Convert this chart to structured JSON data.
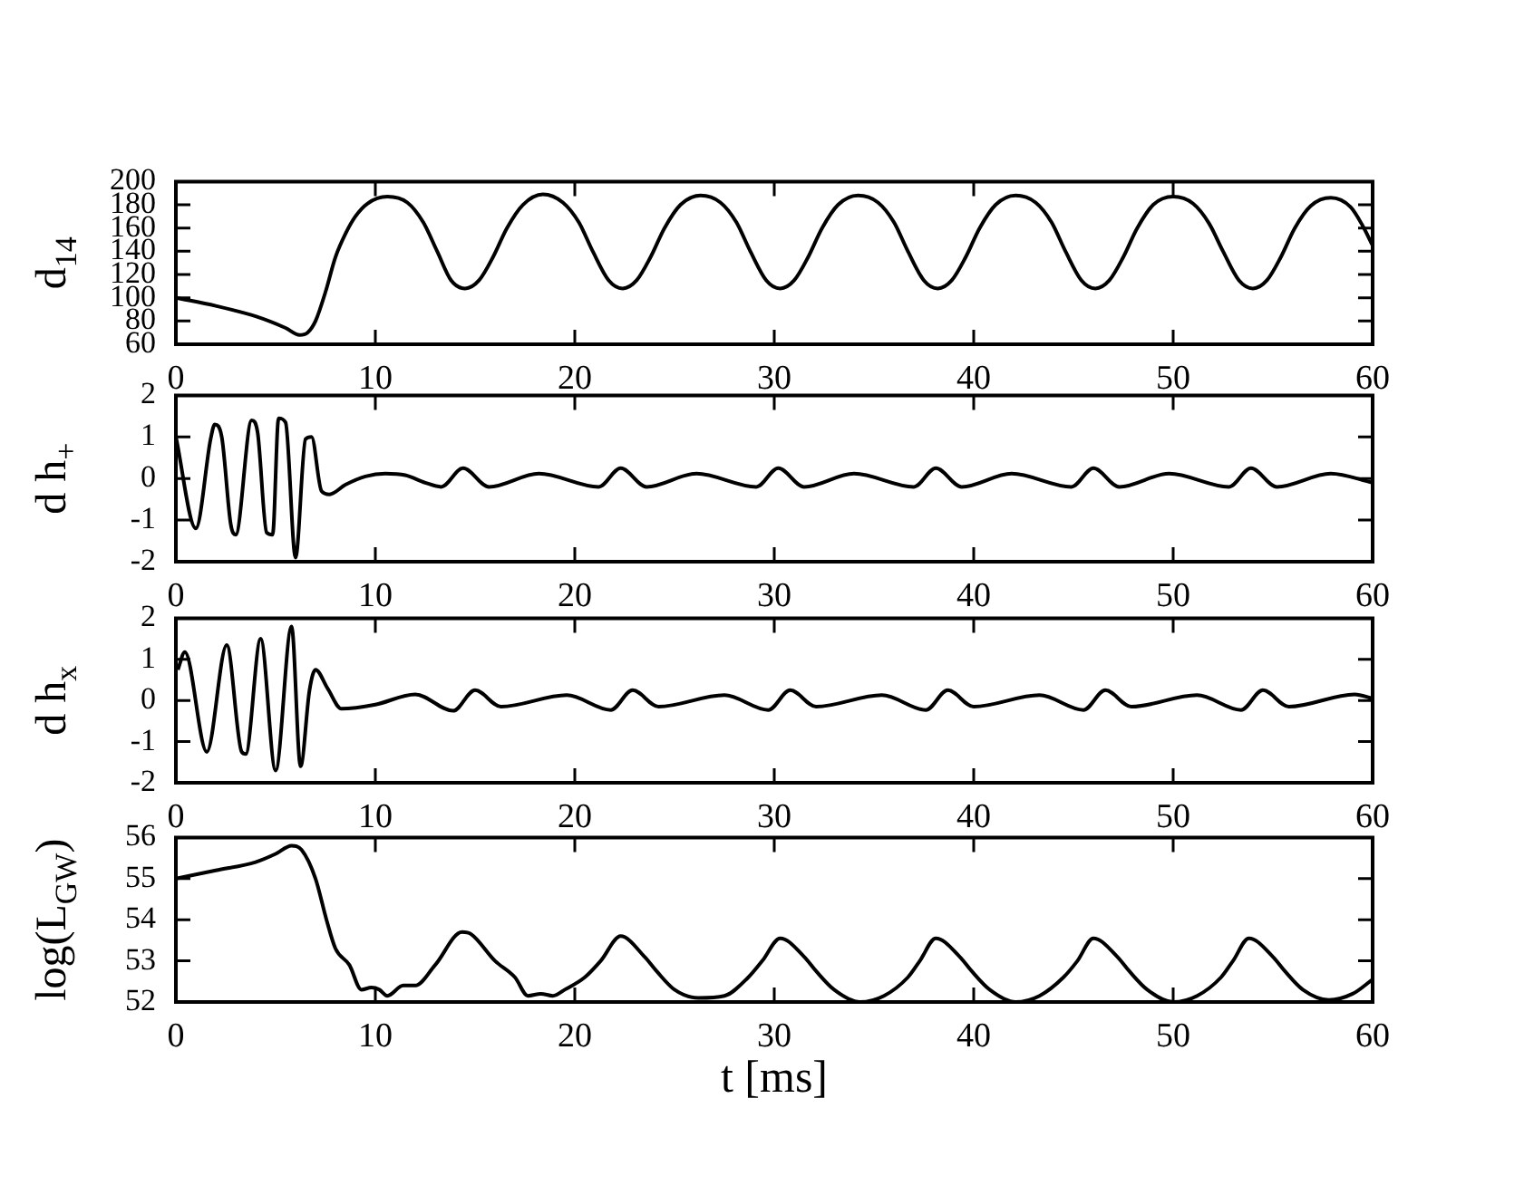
{
  "chart_data": [
    {
      "type": "line",
      "ylabel": "d$_{14}$",
      "color": "#000000",
      "marker": "none",
      "line_style": "solid",
      "x": [
        0,
        2,
        4,
        5.5,
        6.2,
        6.6,
        7.0,
        7.5,
        8.0,
        8.5,
        9.0,
        9.6,
        10.6,
        11.6,
        12.4,
        13.1,
        13.8,
        14.5,
        15.2,
        15.9,
        16.6,
        17.4,
        18.4,
        19.4,
        20.2,
        20.9,
        21.7,
        22.4,
        23.1,
        23.8,
        24.5,
        25.3,
        26.3,
        27.3,
        28.1,
        28.8,
        29.6,
        30.3,
        31.0,
        31.7,
        32.4,
        33.2,
        34.2,
        35.2,
        36.0,
        36.7,
        37.5,
        38.2,
        38.9,
        39.6,
        40.3,
        41.1,
        42.1,
        43.1,
        43.9,
        44.6,
        45.4,
        46.1,
        46.8,
        47.5,
        48.2,
        49.0,
        50.0,
        51.0,
        51.8,
        52.5,
        53.3,
        54.0,
        54.7,
        55.4,
        56.1,
        56.9,
        57.9,
        58.9,
        59.5,
        60
      ],
      "values": [
        100,
        93,
        84,
        74,
        68,
        70,
        80,
        105,
        135,
        155,
        170,
        181,
        187,
        182,
        165,
        140,
        115,
        108,
        115,
        135,
        160,
        180,
        189,
        182,
        165,
        140,
        115,
        108,
        115,
        135,
        160,
        180,
        188,
        182,
        165,
        140,
        115,
        108,
        115,
        135,
        160,
        180,
        188,
        182,
        165,
        140,
        115,
        108,
        115,
        135,
        160,
        180,
        188,
        182,
        165,
        140,
        115,
        108,
        115,
        135,
        160,
        180,
        187,
        181,
        164,
        140,
        115,
        108,
        115,
        135,
        160,
        179,
        186,
        178,
        162,
        145
      ],
      "xlim": [
        0,
        60
      ],
      "xticks": [
        0,
        10,
        20,
        30,
        40,
        50,
        60
      ],
      "ylim": [
        60,
        200
      ],
      "yticks": [
        60,
        80,
        100,
        120,
        140,
        160,
        180,
        200
      ]
    },
    {
      "type": "line",
      "ylabel": "d h$_{+}$",
      "color": "#000000",
      "marker": "none",
      "line_style": "solid",
      "x": [
        0,
        1.0,
        1.75,
        1.95,
        2.3,
        2.75,
        3.0,
        3.8,
        4.1,
        4.55,
        4.85,
        5.15,
        5.5,
        6.0,
        6.5,
        6.8,
        7.3,
        7.7,
        8.5,
        9.5,
        10.5,
        11.5,
        12.5,
        13.3,
        14.4,
        15.7,
        18.2,
        21.2,
        22.3,
        23.6,
        26.1,
        29.1,
        30.2,
        31.5,
        34.0,
        37.0,
        38.1,
        39.4,
        41.9,
        44.9,
        46.0,
        47.3,
        49.8,
        52.8,
        53.9,
        55.2,
        57.9,
        60
      ],
      "values": [
        1.0,
        -1.2,
        0.97,
        1.3,
        1.0,
        -1.1,
        -1.35,
        1.4,
        1.1,
        -1.3,
        -1.35,
        1.45,
        1.35,
        -1.9,
        0.95,
        1.0,
        -0.3,
        -0.38,
        -0.15,
        0.05,
        0.12,
        0.08,
        -0.1,
        -0.2,
        0.25,
        -0.2,
        0.12,
        -0.2,
        0.25,
        -0.2,
        0.12,
        -0.2,
        0.25,
        -0.2,
        0.12,
        -0.2,
        0.25,
        -0.2,
        0.12,
        -0.2,
        0.25,
        -0.2,
        0.12,
        -0.2,
        0.25,
        -0.2,
        0.12,
        -0.1
      ],
      "xlim": [
        0,
        60
      ],
      "xticks": [
        0,
        10,
        20,
        30,
        40,
        50,
        60
      ],
      "ylim": [
        -2,
        2
      ],
      "yticks": [
        -2,
        -1,
        0,
        1,
        2
      ]
    },
    {
      "type": "line",
      "ylabel": "d h$_{x}$",
      "color": "#000000",
      "marker": "none",
      "line_style": "solid",
      "x": [
        0.1,
        0.45,
        1.55,
        2.55,
        3.3,
        3.5,
        4.25,
        5.0,
        5.8,
        6.25,
        6.7,
        7.0,
        7.6,
        8.3,
        10,
        12,
        13.9,
        15.0,
        16.3,
        19.6,
        21.8,
        22.9,
        24.2,
        27.5,
        29.7,
        30.8,
        32.1,
        35.4,
        37.6,
        38.7,
        40.0,
        43.3,
        45.5,
        46.6,
        47.9,
        51.2,
        53.4,
        54.5,
        55.8,
        59.1,
        60
      ],
      "values": [
        0.75,
        1.18,
        -1.25,
        1.35,
        -1.25,
        -1.3,
        1.5,
        -1.7,
        1.8,
        -1.6,
        0.25,
        0.75,
        0.3,
        -0.2,
        -0.1,
        0.15,
        -0.25,
        0.25,
        -0.15,
        0.13,
        -0.23,
        0.25,
        -0.15,
        0.13,
        -0.23,
        0.25,
        -0.15,
        0.13,
        -0.23,
        0.25,
        -0.15,
        0.13,
        -0.23,
        0.25,
        -0.15,
        0.13,
        -0.23,
        0.25,
        -0.15,
        0.15,
        0.05
      ],
      "xlim": [
        0,
        60
      ],
      "xticks": [
        0,
        10,
        20,
        30,
        40,
        50,
        60
      ],
      "ylim": [
        -2,
        2
      ],
      "yticks": [
        -2,
        -1,
        0,
        1,
        2
      ]
    },
    {
      "type": "line",
      "ylabel": "log(L$_{GW}$)",
      "xlabel": "t [ms]",
      "color": "#000000",
      "marker": "none",
      "line_style": "solid",
      "x": [
        0,
        2,
        4,
        5,
        5.8,
        6.3,
        7.0,
        7.55,
        8.0,
        8.7,
        9.3,
        9.8,
        10.2,
        10.6,
        11.4,
        12,
        13,
        14.35,
        14.8,
        16,
        17,
        17.65,
        18.3,
        18.9,
        19.5,
        20.5,
        21.3,
        22.3,
        23.5,
        24.1,
        25.0,
        26.2,
        27.5,
        28.7,
        29.4,
        30.3,
        31.5,
        32.1,
        33.0,
        34.3,
        35.5,
        36.7,
        37.3,
        38.1,
        39.3,
        39.9,
        40.8,
        42.1,
        43.3,
        44.5,
        45.2,
        46.0,
        47.2,
        47.8,
        48.7,
        50.0,
        51.2,
        52.4,
        53.0,
        53.8,
        55.0,
        55.6,
        56.5,
        57.8,
        59.0,
        60
      ],
      "values": [
        55.0,
        55.2,
        55.4,
        55.6,
        55.8,
        55.7,
        55.0,
        54.0,
        53.3,
        52.9,
        52.3,
        52.35,
        52.3,
        52.15,
        52.4,
        52.4,
        52.9,
        53.7,
        53.65,
        53.0,
        52.6,
        52.15,
        52.2,
        52.15,
        52.3,
        52.6,
        53.0,
        53.6,
        53.1,
        52.75,
        52.3,
        52.1,
        52.15,
        52.6,
        53.0,
        53.55,
        53.1,
        52.75,
        52.3,
        52.0,
        52.15,
        52.6,
        53.0,
        53.55,
        53.1,
        52.75,
        52.3,
        52.0,
        52.15,
        52.6,
        53.0,
        53.55,
        53.1,
        52.75,
        52.3,
        52.0,
        52.15,
        52.6,
        53.0,
        53.55,
        53.1,
        52.75,
        52.3,
        52.05,
        52.2,
        52.55
      ],
      "xlim": [
        0,
        60
      ],
      "xticks": [
        0,
        10,
        20,
        30,
        40,
        50,
        60
      ],
      "ylim": [
        52,
        56
      ],
      "yticks": [
        52,
        53,
        54,
        55,
        56
      ]
    }
  ]
}
